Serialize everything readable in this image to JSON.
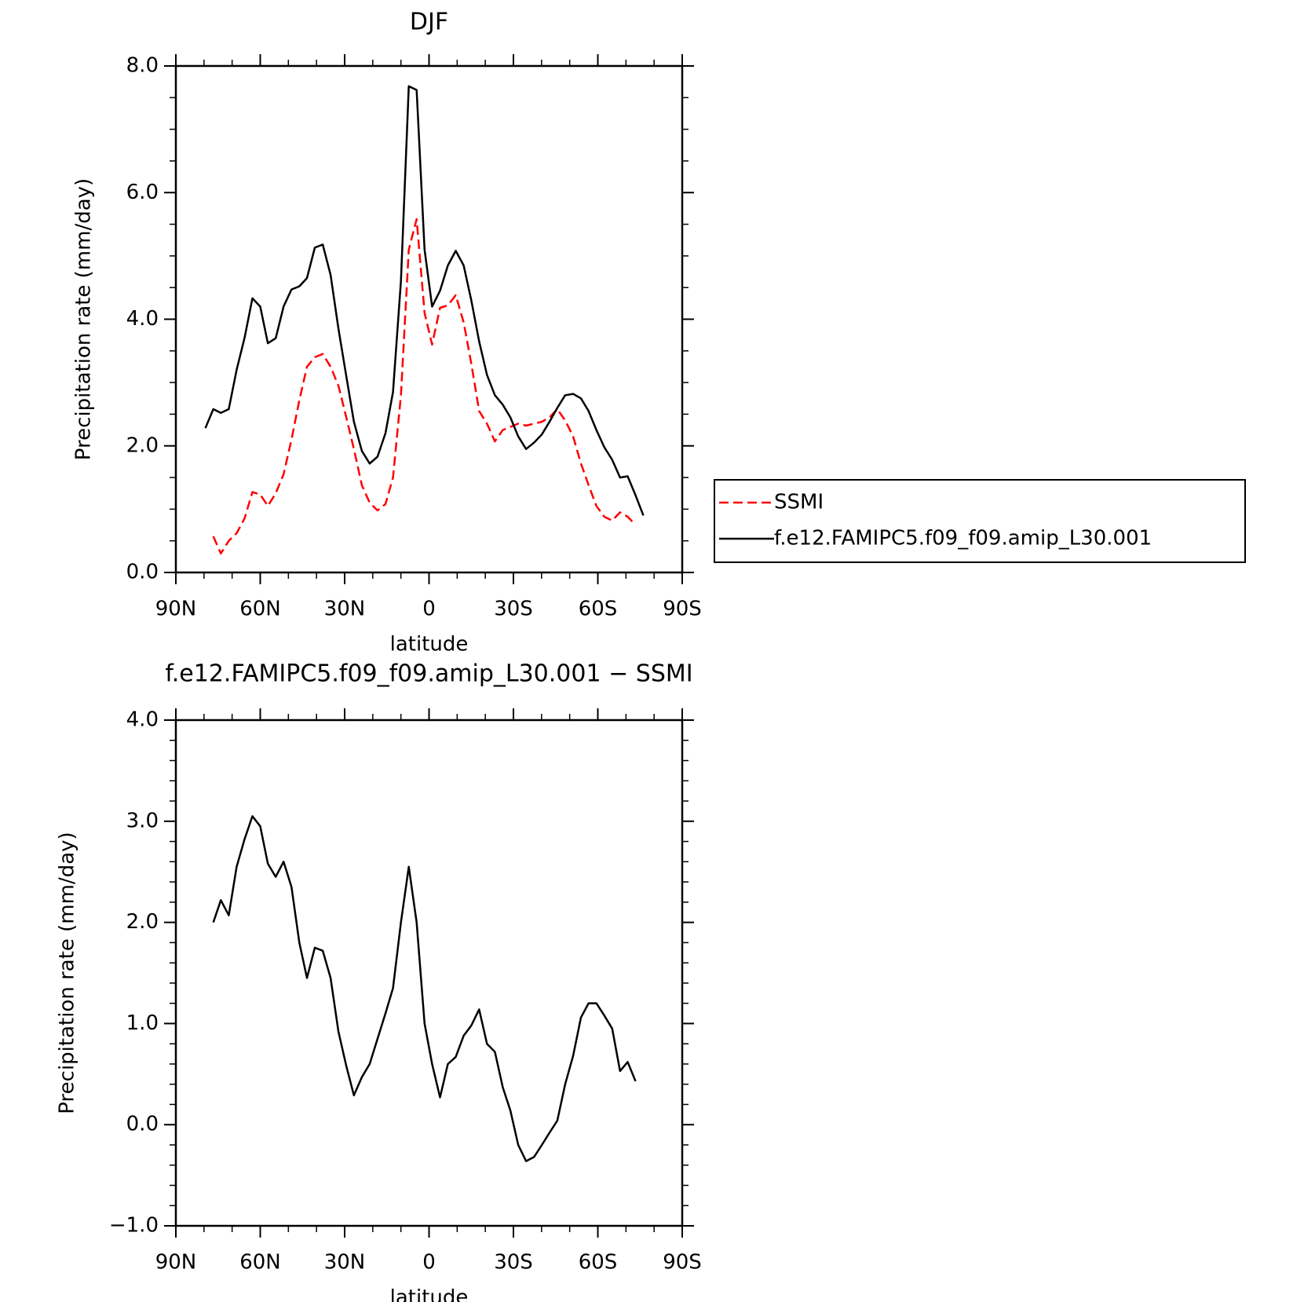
{
  "chart_data": [
    {
      "type": "line",
      "title": "DJF",
      "x_label": "latitude",
      "y_label": "Precipitation rate (mm/day)",
      "x": [
        79.5,
        76.7,
        74.0,
        71.2,
        68.4,
        65.6,
        62.8,
        60.0,
        57.3,
        54.5,
        51.7,
        48.9,
        46.1,
        43.4,
        40.6,
        37.8,
        35.0,
        32.2,
        29.4,
        26.7,
        23.9,
        21.1,
        18.3,
        15.5,
        12.8,
        10.0,
        7.2,
        4.4,
        1.6,
        -1.1,
        -3.9,
        -6.7,
        -9.5,
        -12.3,
        -15.0,
        -17.8,
        -20.6,
        -23.4,
        -26.2,
        -28.9,
        -31.7,
        -34.5,
        -37.3,
        -40.1,
        -42.8,
        -45.6,
        -48.4,
        -51.2,
        -54.0,
        -56.7,
        -59.5,
        -62.3,
        -65.1,
        -67.9,
        -70.6,
        -73.4,
        -76.2
      ],
      "series": [
        {
          "name": "SSMI",
          "color": "#ff0000",
          "dashed": true,
          "values": [
            null,
            0.57,
            0.3,
            0.5,
            0.62,
            0.85,
            1.27,
            1.23,
            1.05,
            1.25,
            1.55,
            2.1,
            2.72,
            3.25,
            3.4,
            3.45,
            3.25,
            2.95,
            2.45,
            1.95,
            1.38,
            1.1,
            0.98,
            1.08,
            1.5,
            2.8,
            5.1,
            5.58,
            4.1,
            3.6,
            4.18,
            4.22,
            4.38,
            3.95,
            3.3,
            2.55,
            2.35,
            2.07,
            2.25,
            2.3,
            2.35,
            2.32,
            2.35,
            2.38,
            2.45,
            2.58,
            2.4,
            2.15,
            1.72,
            1.38,
            1.05,
            0.88,
            0.82,
            0.95,
            0.88,
            0.75,
            null
          ]
        },
        {
          "name": "f.e12.FAMIPC5.f09_f09.amip_L30.001",
          "color": "#000000",
          "dashed": false,
          "values": [
            2.28,
            2.58,
            2.52,
            2.58,
            3.2,
            3.7,
            4.33,
            4.2,
            3.62,
            3.7,
            4.2,
            4.47,
            4.52,
            4.65,
            5.13,
            5.18,
            4.7,
            3.85,
            3.1,
            2.38,
            1.92,
            1.72,
            1.83,
            2.2,
            2.85,
            4.6,
            7.68,
            7.62,
            5.1,
            4.2,
            4.45,
            4.85,
            5.08,
            4.85,
            4.3,
            3.65,
            3.12,
            2.8,
            2.65,
            2.45,
            2.15,
            1.95,
            2.05,
            2.18,
            2.38,
            2.6,
            2.8,
            2.82,
            2.75,
            2.55,
            2.25,
            1.98,
            1.78,
            1.5,
            1.52,
            1.22,
            0.9
          ]
        }
      ],
      "xlim": [
        90,
        -90
      ],
      "xticks": [
        {
          "value": 90,
          "label": "90N"
        },
        {
          "value": 60,
          "label": "60N"
        },
        {
          "value": 30,
          "label": "30N"
        },
        0,
        {
          "value": -30,
          "label": "30S"
        },
        {
          "value": -60,
          "label": "60S"
        },
        {
          "value": -90,
          "label": "90S"
        }
      ],
      "ylim": [
        0,
        8
      ],
      "yticks": [
        {
          "value": 0,
          "label": "0.0"
        },
        {
          "value": 2,
          "label": "2.0"
        },
        {
          "value": 4,
          "label": "4.0"
        },
        {
          "value": 6,
          "label": "6.0"
        },
        {
          "value": 8,
          "label": "8.0"
        }
      ],
      "legend": "right"
    },
    {
      "type": "line",
      "title": "f.e12.FAMIPC5.f09_f09.amip_L30.001 − SSMI",
      "x_label": "latitude",
      "y_label": "Precipitation rate (mm/day)",
      "x": [
        79.5,
        76.7,
        74.0,
        71.2,
        68.4,
        65.6,
        62.8,
        60.0,
        57.3,
        54.5,
        51.7,
        48.9,
        46.1,
        43.4,
        40.6,
        37.8,
        35.0,
        32.2,
        29.4,
        26.7,
        23.9,
        21.1,
        18.3,
        15.5,
        12.8,
        10.0,
        7.2,
        4.4,
        1.6,
        -1.1,
        -3.9,
        -6.7,
        -9.5,
        -12.3,
        -15.0,
        -17.8,
        -20.6,
        -23.4,
        -26.2,
        -28.9,
        -31.7,
        -34.5,
        -37.3,
        -40.1,
        -42.8,
        -45.6,
        -48.4,
        -51.2,
        -54.0,
        -56.7,
        -59.5,
        -62.3,
        -65.1,
        -67.9,
        -70.6,
        -73.4,
        -76.2
      ],
      "series": [
        {
          "color": "#000000",
          "dashed": false,
          "values": [
            null,
            2.0,
            2.22,
            2.07,
            2.55,
            2.82,
            3.05,
            2.95,
            2.58,
            2.45,
            2.6,
            2.35,
            1.8,
            1.45,
            1.75,
            1.72,
            1.45,
            0.92,
            0.58,
            0.29,
            0.47,
            0.6,
            0.85,
            1.1,
            1.35,
            2.0,
            2.55,
            2.0,
            1.0,
            0.6,
            0.27,
            0.6,
            0.67,
            0.88,
            0.98,
            1.14,
            0.8,
            0.72,
            0.37,
            0.14,
            -0.2,
            -0.36,
            -0.32,
            -0.2,
            -0.08,
            0.04,
            0.4,
            0.68,
            1.06,
            1.2,
            1.2,
            1.08,
            0.95,
            0.53,
            0.62,
            0.43,
            null
          ]
        }
      ],
      "xlim": [
        90,
        -90
      ],
      "xticks": [
        {
          "value": 90,
          "label": "90N"
        },
        {
          "value": 60,
          "label": "60N"
        },
        {
          "value": 30,
          "label": "30N"
        },
        0,
        {
          "value": -30,
          "label": "30S"
        },
        {
          "value": -60,
          "label": "60S"
        },
        {
          "value": -90,
          "label": "90S"
        }
      ],
      "ylim": [
        -1,
        4
      ],
      "yticks": [
        {
          "value": -1,
          "label": "−1.0"
        },
        {
          "value": 0,
          "label": "0.0"
        },
        {
          "value": 1,
          "label": "1.0"
        },
        {
          "value": 2,
          "label": "2.0"
        },
        {
          "value": 3,
          "label": "3.0"
        },
        {
          "value": 4,
          "label": "4.0"
        }
      ]
    }
  ]
}
